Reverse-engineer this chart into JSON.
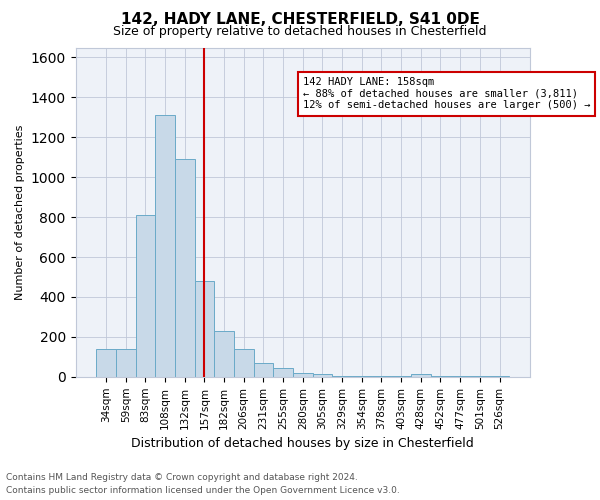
{
  "title1": "142, HADY LANE, CHESTERFIELD, S41 0DE",
  "title2": "Size of property relative to detached houses in Chesterfield",
  "xlabel": "Distribution of detached houses by size in Chesterfield",
  "ylabel": "Number of detached properties",
  "categories": [
    "34sqm",
    "59sqm",
    "83sqm",
    "108sqm",
    "132sqm",
    "157sqm",
    "182sqm",
    "206sqm",
    "231sqm",
    "255sqm",
    "280sqm",
    "305sqm",
    "329sqm",
    "354sqm",
    "378sqm",
    "403sqm",
    "428sqm",
    "452sqm",
    "477sqm",
    "501sqm",
    "526sqm"
  ],
  "values": [
    140,
    140,
    810,
    1310,
    1090,
    480,
    230,
    140,
    70,
    45,
    20,
    15,
    5,
    5,
    3,
    3,
    15,
    2,
    2,
    2,
    2
  ],
  "bar_color": "#c8d9e8",
  "bar_edgecolor": "#6aaac8",
  "vline_x_index": 5,
  "vline_color": "#cc0000",
  "annotation_line1": "142 HADY LANE: 158sqm",
  "annotation_line2": "← 88% of detached houses are smaller (3,811)",
  "annotation_line3": "12% of semi-detached houses are larger (500) →",
  "annotation_box_edgecolor": "#cc0000",
  "ylim": [
    0,
    1650
  ],
  "yticks": [
    0,
    200,
    400,
    600,
    800,
    1000,
    1200,
    1400,
    1600
  ],
  "footer": "Contains HM Land Registry data © Crown copyright and database right 2024.\nContains public sector information licensed under the Open Government Licence v3.0.",
  "background_color": "#ffffff",
  "plot_background": "#eef2f8",
  "grid_color": "#c0c8d8",
  "title1_fontsize": 11,
  "title2_fontsize": 9,
  "xlabel_fontsize": 9,
  "ylabel_fontsize": 8,
  "tick_fontsize": 7.5,
  "footer_fontsize": 6.5
}
